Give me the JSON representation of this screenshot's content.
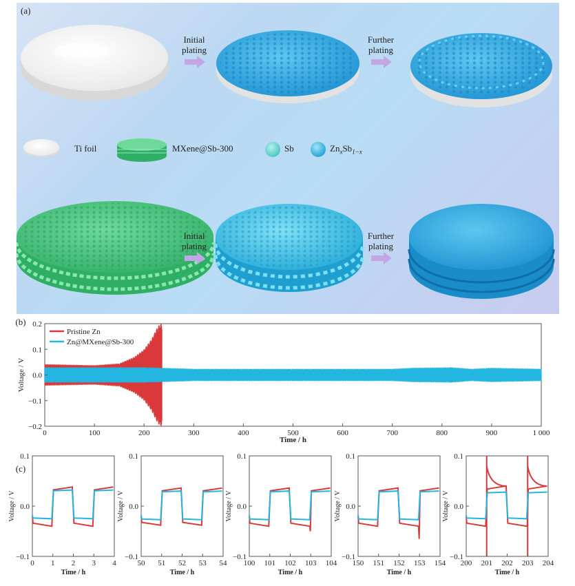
{
  "panel_a": {
    "label": "(a)",
    "arrow_labels": {
      "initial_plating": [
        "Initial",
        "plating"
      ],
      "further_plating": [
        "Further",
        "plating"
      ]
    },
    "legend": {
      "ti_foil": "Ti foil",
      "mxene": "MXene@Sb-300",
      "sb": "Sb",
      "znsb_base1": "Zn",
      "znsb_sub1": "x",
      "znsb_base2": "Sb",
      "znsb_sub2": "1−x"
    },
    "colors": {
      "ti_foil": "#f2f2f2",
      "mxene": "#3fbf78",
      "sb": "#4fcfc6",
      "znsb": "#20a8d8",
      "arrow": "#c4a6e6"
    }
  },
  "chart_data": [
    {
      "id": "b",
      "panel_label": "(b)",
      "type": "line",
      "xlabel": "Time / h",
      "ylabel": "Voltage / V",
      "xlim": [
        0,
        1000
      ],
      "ylim": [
        -0.2,
        0.2
      ],
      "xticks": [
        0,
        100,
        200,
        300,
        400,
        500,
        600,
        700,
        800,
        900,
        1000
      ],
      "xtick_labels": [
        "0",
        "100",
        "200",
        "300",
        "400",
        "500",
        "600",
        "700",
        "800",
        "900",
        "1 000"
      ],
      "yticks": [
        -0.2,
        -0.1,
        0.0,
        0.1,
        0.2
      ],
      "ytick_labels": [
        "−0.2",
        "−0.1",
        "0.0",
        "0.1",
        "0.2"
      ],
      "legend": "top-left",
      "series": [
        {
          "name": "Pristine Zn",
          "color": "#d9393a",
          "envelope": [
            [
              0,
              0.042
            ],
            [
              50,
              0.04
            ],
            [
              100,
              0.038
            ],
            [
              150,
              0.045
            ],
            [
              180,
              0.07
            ],
            [
              200,
              0.1
            ],
            [
              215,
              0.14
            ],
            [
              225,
              0.18
            ],
            [
              232,
              0.2
            ],
            [
              236,
              0.2
            ]
          ],
          "end_x": 236
        },
        {
          "name": "Zn@MXene@Sb-300",
          "color": "#22b6e0",
          "envelope": [
            [
              0,
              0.03
            ],
            [
              200,
              0.03
            ],
            [
              237,
              0.028
            ],
            [
              300,
              0.024
            ],
            [
              500,
              0.024
            ],
            [
              700,
              0.024
            ],
            [
              740,
              0.028
            ],
            [
              820,
              0.03
            ],
            [
              860,
              0.024
            ],
            [
              900,
              0.028
            ],
            [
              1000,
              0.024
            ]
          ],
          "end_x": 1000
        }
      ]
    },
    {
      "id": "c1",
      "panel_label": "(c)",
      "type": "line",
      "xlabel": "Time / h",
      "ylabel": "Voltage / V",
      "xlim": [
        0,
        4
      ],
      "ylim": [
        -0.1,
        0.1
      ],
      "xtick_labels": [
        "0",
        "1",
        "2",
        "3",
        "4"
      ],
      "ytick_labels": [
        "−0.1",
        "0.0",
        "0.1"
      ],
      "series": [
        {
          "name": "Pristine Zn",
          "color": "#d9393a",
          "high": 0.038,
          "low": -0.04,
          "spike": 0
        },
        {
          "name": "Zn@MXene@Sb-300",
          "color": "#22b6e0",
          "high": 0.032,
          "low": -0.025,
          "spike": 0
        }
      ]
    },
    {
      "id": "c2",
      "panel_label": "",
      "type": "line",
      "xlabel": "Time / h",
      "ylabel": "Voltage / V",
      "xlim": [
        50,
        54
      ],
      "ylim": [
        -0.1,
        0.1
      ],
      "xtick_labels": [
        "50",
        "51",
        "52",
        "53",
        "54"
      ],
      "ytick_labels": [
        "−0.1",
        "0.0",
        "0.1"
      ],
      "series": [
        {
          "name": "Pristine Zn",
          "color": "#d9393a",
          "high": 0.036,
          "low": -0.038,
          "spike": 0
        },
        {
          "name": "Zn@MXene@Sb-300",
          "color": "#22b6e0",
          "high": 0.03,
          "low": -0.027,
          "spike": 0
        }
      ]
    },
    {
      "id": "c3",
      "panel_label": "",
      "type": "line",
      "xlabel": "Time / h",
      "ylabel": "Voltage / V",
      "xlim": [
        100,
        104
      ],
      "ylim": [
        -0.1,
        0.1
      ],
      "xtick_labels": [
        "100",
        "101",
        "102",
        "103",
        "104"
      ],
      "ytick_labels": [
        "−0.1",
        "0.0",
        "0.1"
      ],
      "series": [
        {
          "name": "Pristine Zn",
          "color": "#d9393a",
          "high": 0.036,
          "low": -0.04,
          "spike": -0.01
        },
        {
          "name": "Zn@MXene@Sb-300",
          "color": "#22b6e0",
          "high": 0.03,
          "low": -0.027,
          "spike": 0
        }
      ]
    },
    {
      "id": "c4",
      "panel_label": "",
      "type": "line",
      "xlabel": "Time / h",
      "ylabel": "Voltage / V",
      "xlim": [
        150,
        154
      ],
      "ylim": [
        -0.1,
        0.1
      ],
      "xtick_labels": [
        "150",
        "151",
        "152",
        "153",
        "154"
      ],
      "ytick_labels": [
        "−0.1",
        "0.0",
        "0.1"
      ],
      "series": [
        {
          "name": "Pristine Zn",
          "color": "#d9393a",
          "high": 0.036,
          "low": -0.04,
          "spike": -0.025
        },
        {
          "name": "Zn@MXene@Sb-300",
          "color": "#22b6e0",
          "high": 0.03,
          "low": -0.027,
          "spike": 0
        }
      ]
    },
    {
      "id": "c5",
      "panel_label": "",
      "type": "line",
      "xlabel": "Time / h",
      "ylabel": "Voltage / V",
      "xlim": [
        200,
        204
      ],
      "ylim": [
        -0.1,
        0.1
      ],
      "xtick_labels": [
        "200",
        "201",
        "202",
        "203",
        "204"
      ],
      "ytick_labels": [
        "−0.1",
        "0.0",
        "0.1"
      ],
      "series": [
        {
          "name": "Pristine Zn",
          "color": "#d9393a",
          "high": 0.04,
          "low": -0.04,
          "spike": 0.07
        },
        {
          "name": "Zn@MXene@Sb-300",
          "color": "#22b6e0",
          "high": 0.028,
          "low": -0.025,
          "spike": 0
        }
      ]
    }
  ]
}
